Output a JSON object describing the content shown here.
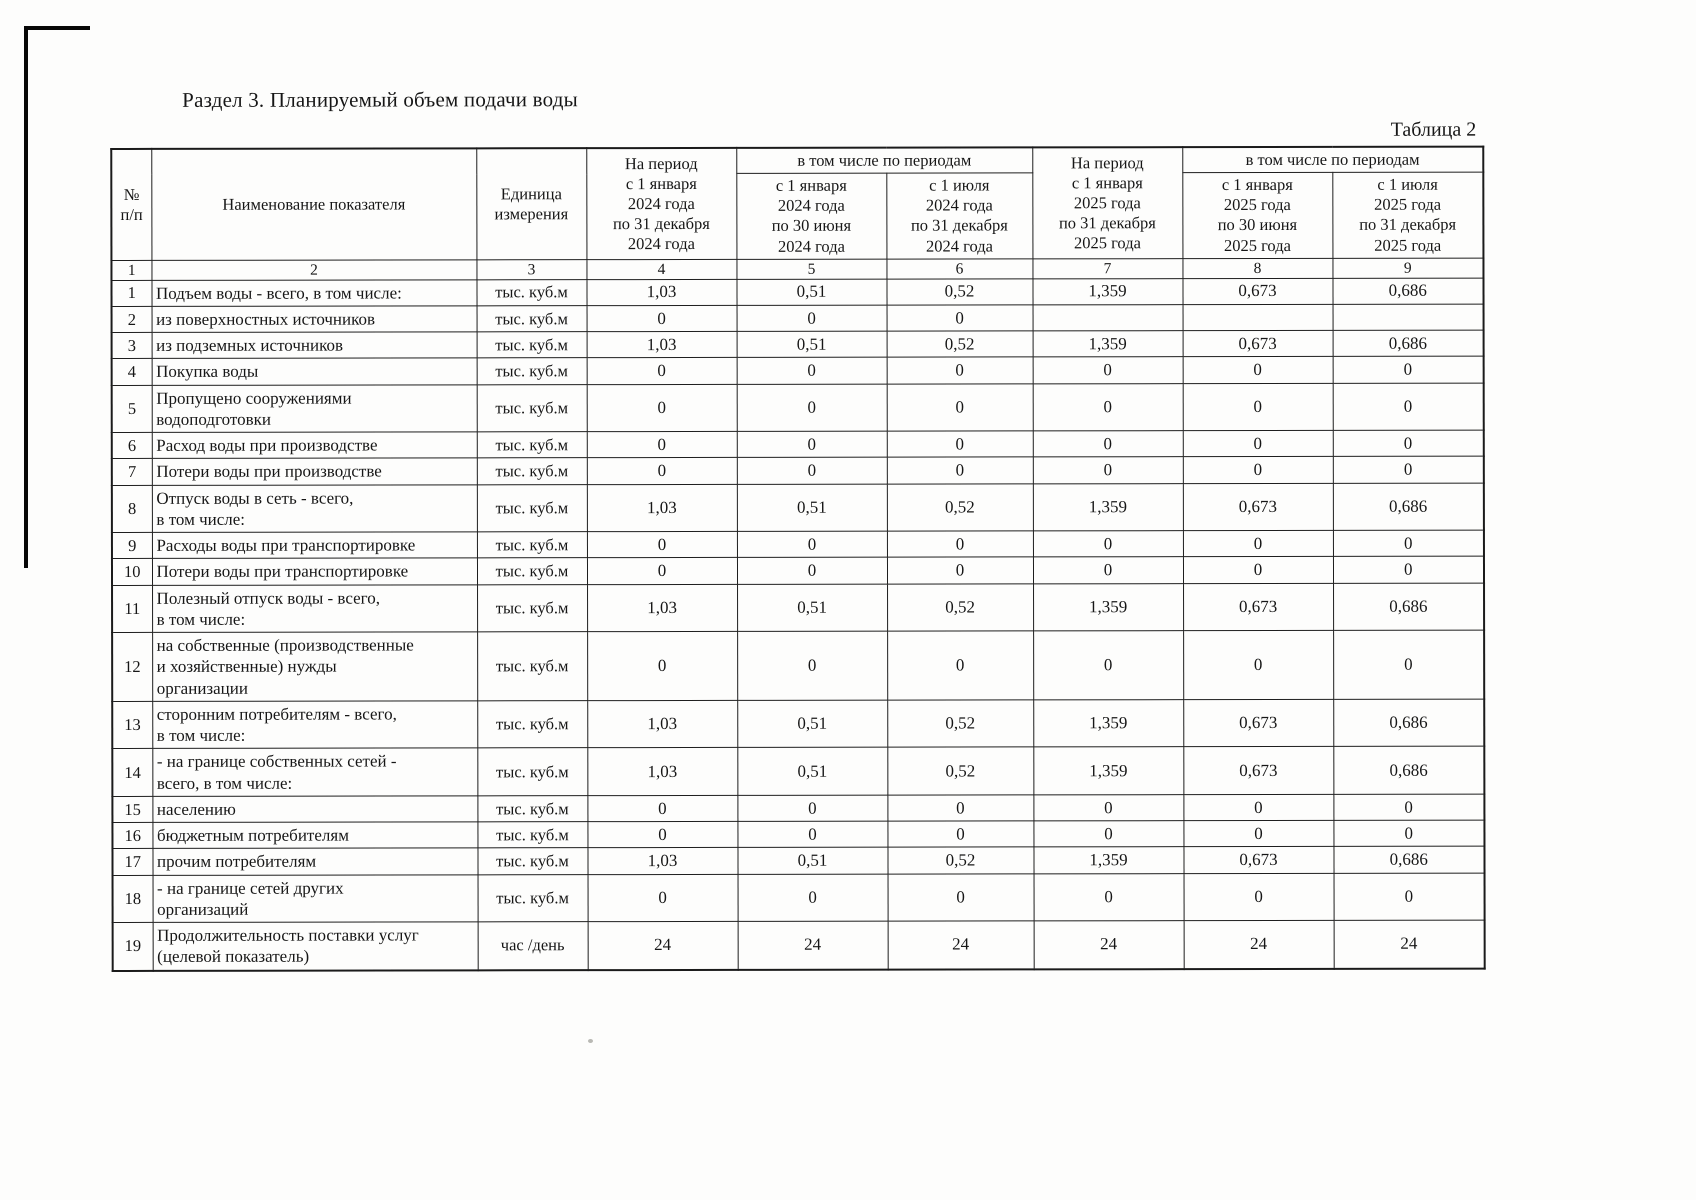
{
  "page": {
    "section_title": "Раздел 3.  Планируемый объем подачи воды",
    "table_label": "Таблица 2"
  },
  "table": {
    "header": {
      "num": "№\nп/п",
      "name": "Наименование показателя",
      "unit": "Единица\nизмерения",
      "period_2024": "На период\nс 1 января\n2024 года\nпо 31 декабря\n2024 года",
      "including_2024": "в том числе по периодам",
      "h1_2024": "с 1 января\n2024 года\nпо 30 июня\n2024 года",
      "h2_2024": "с 1 июля\n2024 года\nпо 31 декабря\n2024 года",
      "period_2025": "На период\nс 1 января\n2025 года\nпо 31 декабря\n2025 года",
      "including_2025": "в том числе по периодам",
      "h1_2025": "с 1 января\n2025 года\nпо 30 июня\n2025 года",
      "h2_2025": "с 1 июля\n2025 года\nпо 31 декабря\n2025 года"
    },
    "column_numbers": [
      "1",
      "2",
      "3",
      "4",
      "5",
      "6",
      "7",
      "8",
      "9"
    ],
    "rows": [
      {
        "num": "1",
        "indent": 1,
        "name": "Подъем воды - всего, в том числе:",
        "unit": "тыс. куб.м",
        "values": [
          "1,03",
          "0,51",
          "0,52",
          "1,359",
          "0,673",
          "0,686"
        ]
      },
      {
        "num": "2",
        "indent": 3,
        "name": "из поверхностных источников",
        "unit": "тыс. куб.м",
        "values": [
          "0",
          "0",
          "0",
          "",
          "",
          ""
        ]
      },
      {
        "num": "3",
        "indent": 3,
        "name": "из подземных источников",
        "unit": "тыс. куб.м",
        "values": [
          "1,03",
          "0,51",
          "0,52",
          "1,359",
          "0,673",
          "0,686"
        ]
      },
      {
        "num": "4",
        "indent": 1,
        "name": "Покупка воды",
        "unit": "тыс. куб.м",
        "values": [
          "0",
          "0",
          "0",
          "0",
          "0",
          "0"
        ]
      },
      {
        "num": "5",
        "indent": 1,
        "name": "Пропущено сооружениями\nводоподготовки",
        "unit": "тыс. куб.м",
        "values": [
          "0",
          "0",
          "0",
          "0",
          "0",
          "0"
        ]
      },
      {
        "num": "6",
        "indent": 1,
        "name": "Расход воды при производстве",
        "unit": "тыс. куб.м",
        "values": [
          "0",
          "0",
          "0",
          "0",
          "0",
          "0"
        ]
      },
      {
        "num": "7",
        "indent": 1,
        "name": "Потери воды при производстве",
        "unit": "тыс. куб.м",
        "values": [
          "0",
          "0",
          "0",
          "0",
          "0",
          "0"
        ]
      },
      {
        "num": "8",
        "indent": 1,
        "name": "Отпуск воды в сеть - всего,\nв том числе:",
        "unit": "тыс. куб.м",
        "values": [
          "1,03",
          "0,51",
          "0,52",
          "1,359",
          "0,673",
          "0,686"
        ]
      },
      {
        "num": "9",
        "indent": 1,
        "name": "Расходы воды при транспортировке",
        "unit": "тыс. куб.м",
        "values": [
          "0",
          "0",
          "0",
          "0",
          "0",
          "0"
        ]
      },
      {
        "num": "10",
        "indent": 1,
        "name": "Потери воды при транспортировке",
        "unit": "тыс. куб.м",
        "values": [
          "0",
          "0",
          "0",
          "0",
          "0",
          "0"
        ]
      },
      {
        "num": "11",
        "indent": 1,
        "name": "Полезный отпуск воды - всего,\nв том числе:",
        "unit": "тыс. куб.м",
        "values": [
          "1,03",
          "0,51",
          "0,52",
          "1,359",
          "0,673",
          "0,686"
        ]
      },
      {
        "num": "12",
        "indent": 2,
        "name": "на собственные (производственные\nи хозяйственные) нужды\nорганизации",
        "unit": "тыс. куб.м",
        "values": [
          "0",
          "0",
          "0",
          "0",
          "0",
          "0"
        ]
      },
      {
        "num": "13",
        "indent": 2,
        "name": "сторонним потребителям - всего,\nв том числе:",
        "unit": "тыс. куб.м",
        "values": [
          "1,03",
          "0,51",
          "0,52",
          "1,359",
          "0,673",
          "0,686"
        ]
      },
      {
        "num": "14",
        "indent": 3,
        "name": "- на границе собственных сетей -\nвсего, в том числе:",
        "unit": "тыс. куб.м",
        "values": [
          "1,03",
          "0,51",
          "0,52",
          "1,359",
          "0,673",
          "0,686"
        ]
      },
      {
        "num": "15",
        "indent": 4,
        "name": "населению",
        "unit": "тыс. куб.м",
        "values": [
          "0",
          "0",
          "0",
          "0",
          "0",
          "0"
        ]
      },
      {
        "num": "16",
        "indent": 4,
        "name": "бюджетным потребителям",
        "unit": "тыс. куб.м",
        "values": [
          "0",
          "0",
          "0",
          "0",
          "0",
          "0"
        ]
      },
      {
        "num": "17",
        "indent": 4,
        "name": "прочим потребителям",
        "unit": "тыс. куб.м",
        "values": [
          "1,03",
          "0,51",
          "0,52",
          "1,359",
          "0,673",
          "0,686"
        ]
      },
      {
        "num": "18",
        "indent": 3,
        "name": "- на границе сетей других\nорганизаций",
        "unit": "тыс. куб.м",
        "values": [
          "0",
          "0",
          "0",
          "0",
          "0",
          "0"
        ]
      },
      {
        "num": "19",
        "indent": 1,
        "name": "Продолжительность поставки услуг\n(целевой показатель)",
        "unit": "час /день",
        "values": [
          "24",
          "24",
          "24",
          "24",
          "24",
          "24"
        ]
      }
    ]
  }
}
